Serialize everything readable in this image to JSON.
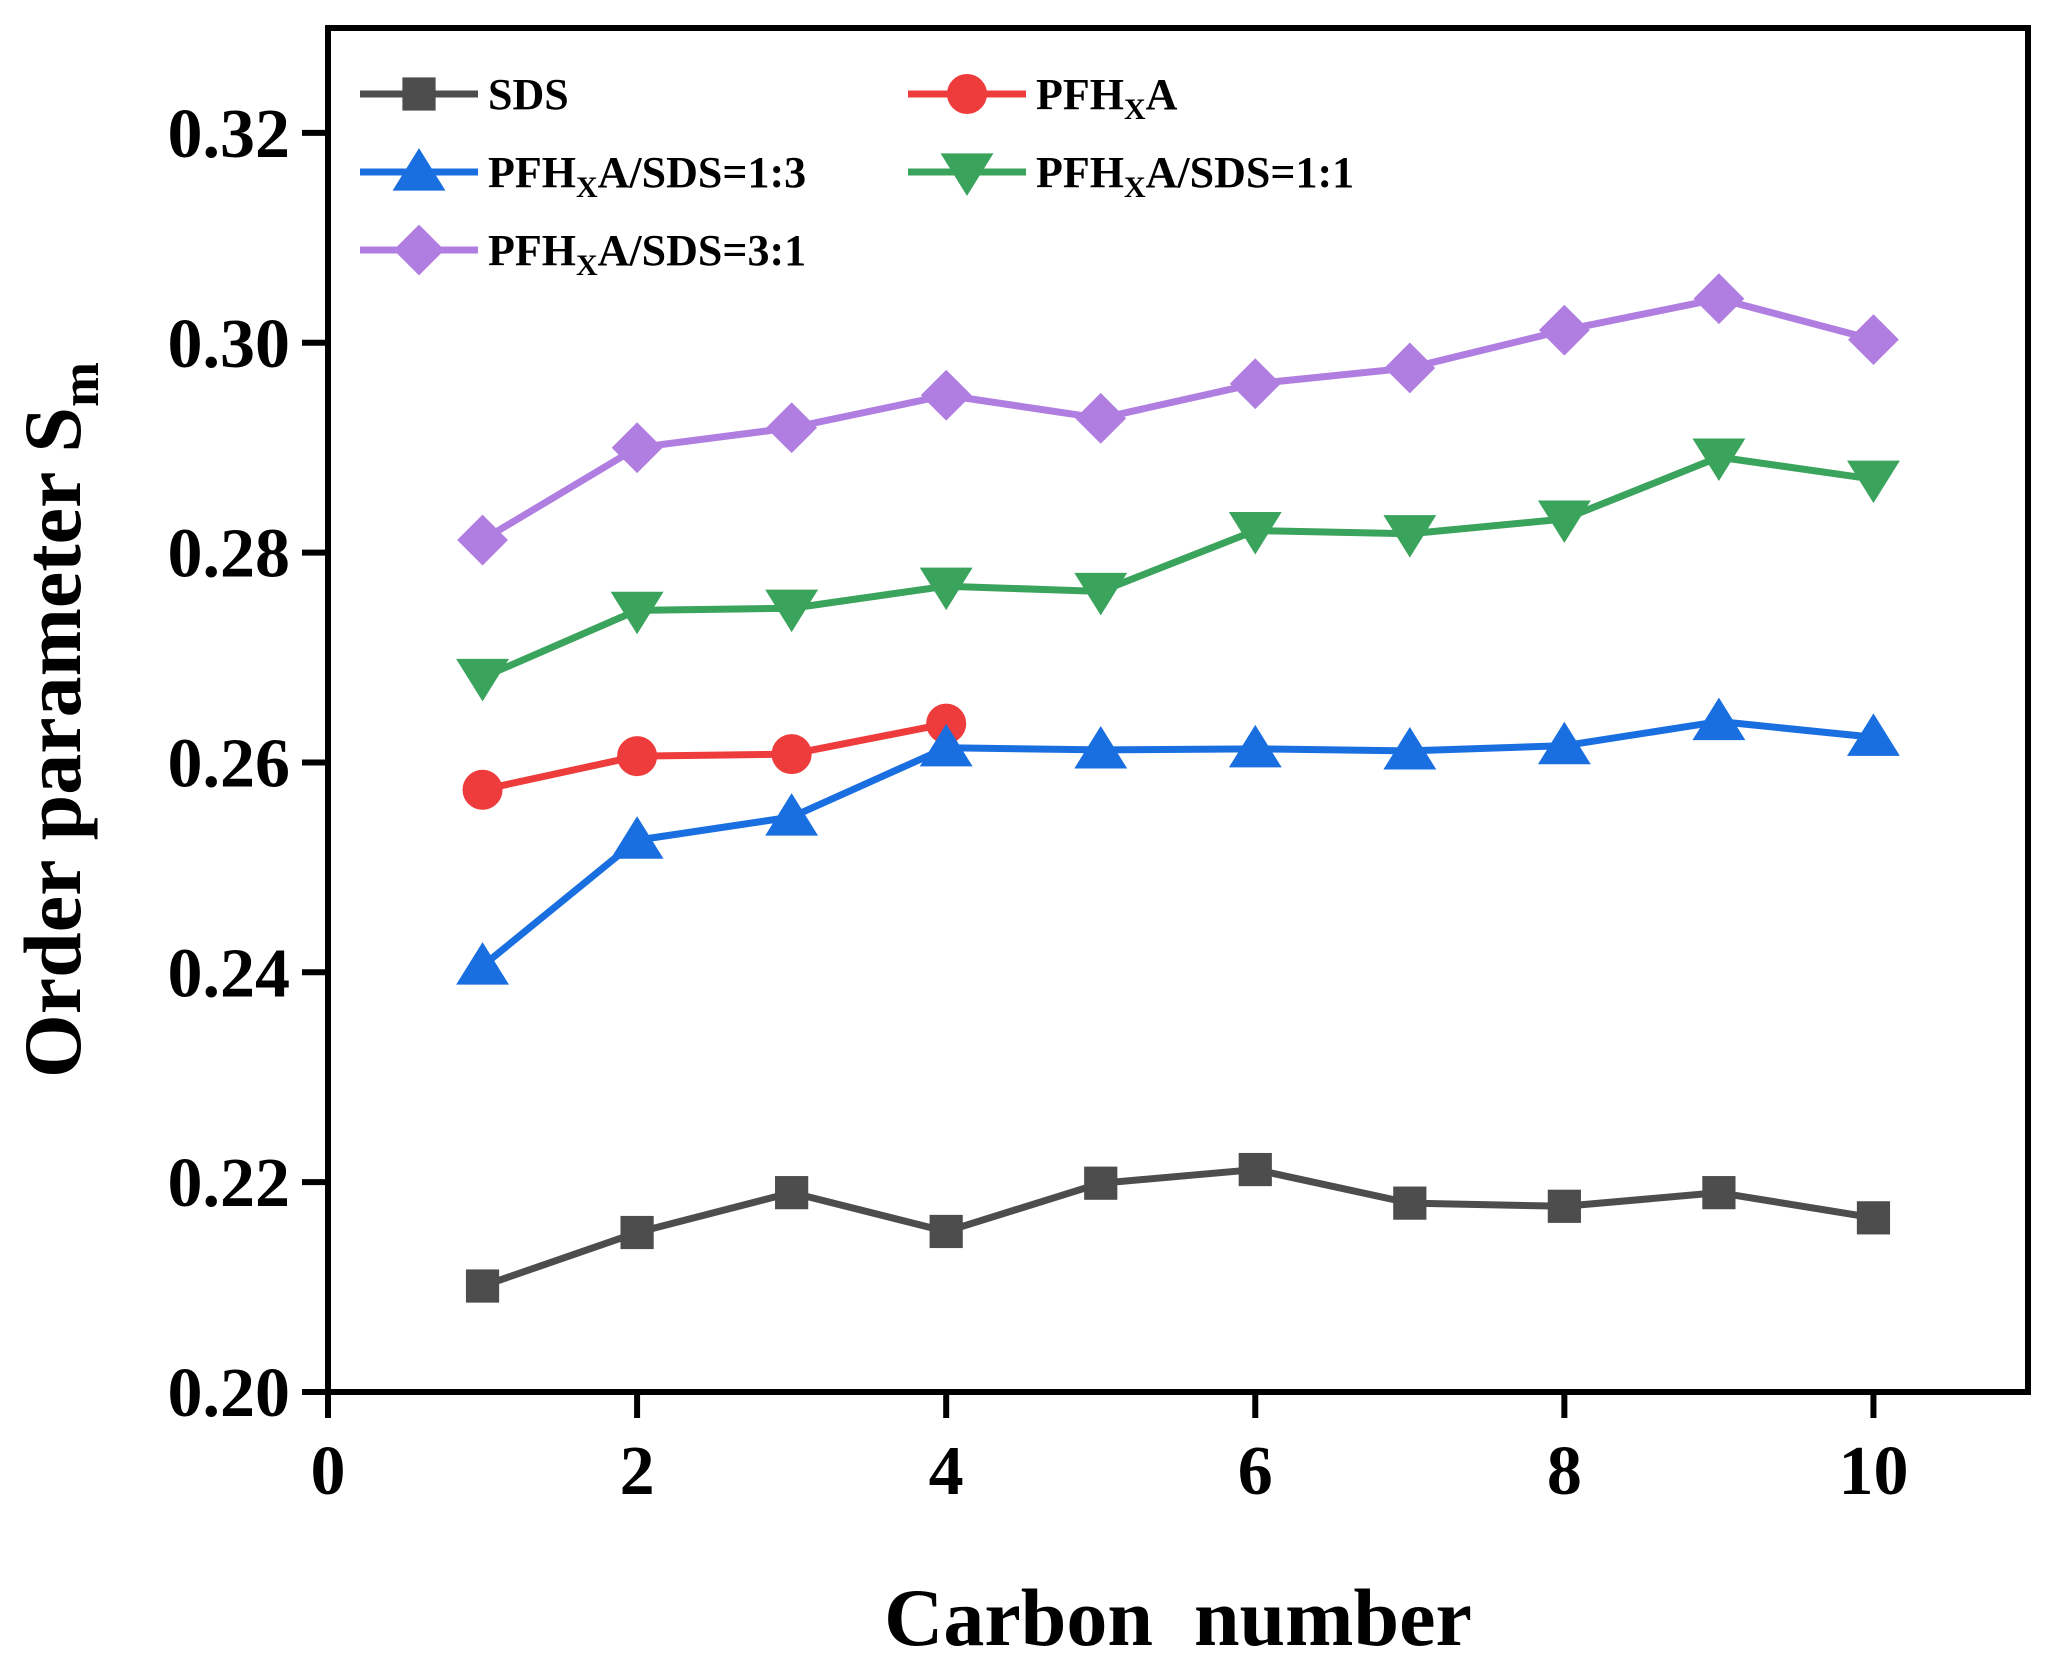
{
  "chart_data": {
    "type": "line",
    "title": "",
    "xlabel": "Carbon  number",
    "ylabel": {
      "main": "Order parameter S",
      "sub": "m"
    },
    "xlim": [
      0,
      11
    ],
    "ylim": [
      0.2,
      0.33
    ],
    "xticks": [
      0,
      2,
      4,
      6,
      8,
      10
    ],
    "xtick_labels": [
      "0",
      "2",
      "4",
      "6",
      "8",
      "10"
    ],
    "yticks": [
      0.2,
      0.22,
      0.24,
      0.26,
      0.28,
      0.3,
      0.32
    ],
    "ytick_labels": [
      "0.20",
      "0.22",
      "0.24",
      "0.26",
      "0.28",
      "0.30",
      "0.32"
    ],
    "grid": false,
    "legend_position": "top-left",
    "series": [
      {
        "name": "SDS",
        "legend": {
          "pre": "SDS",
          "sub": "",
          "post": ""
        },
        "color": "#4d4d4d",
        "marker": "square",
        "x": [
          1,
          2,
          3,
          4,
          5,
          6,
          7,
          8,
          9,
          10
        ],
        "values": [
          0.2101,
          0.2152,
          0.219,
          0.2153,
          0.2199,
          0.2212,
          0.218,
          0.2177,
          0.219,
          0.2166
        ]
      },
      {
        "name": "PFHXA",
        "legend": {
          "pre": "PFH",
          "sub": "X",
          "post": "A"
        },
        "color": "#ee3b3b",
        "marker": "circle",
        "x": [
          1,
          2,
          3,
          4
        ],
        "values": [
          0.2574,
          0.2606,
          0.2608,
          0.2637
        ]
      },
      {
        "name": "PFHXA/SDS=1:3",
        "legend": {
          "pre": "PFH",
          "sub": "X",
          "post": "A/SDS=1:3"
        },
        "color": "#1a6fe0",
        "marker": "triangle-up",
        "x": [
          1,
          2,
          3,
          4,
          5,
          6,
          7,
          8,
          9,
          10
        ],
        "values": [
          0.2406,
          0.2526,
          0.2548,
          0.2614,
          0.2612,
          0.2613,
          0.2611,
          0.2616,
          0.2639,
          0.2624
        ]
      },
      {
        "name": "PFHXA/SDS=1:1",
        "legend": {
          "pre": "PFH",
          "sub": "X",
          "post": "A/SDS=1:1"
        },
        "color": "#3aa35c",
        "marker": "triangle-down",
        "x": [
          1,
          2,
          3,
          4,
          5,
          6,
          7,
          8,
          9,
          10
        ],
        "values": [
          0.2681,
          0.2745,
          0.2747,
          0.2768,
          0.2763,
          0.2821,
          0.2818,
          0.2832,
          0.2891,
          0.287
        ]
      },
      {
        "name": "PFHXA/SDS=3:1",
        "legend": {
          "pre": "PFH",
          "sub": "X",
          "post": "A/SDS=3:1"
        },
        "color": "#b07ee0",
        "marker": "diamond",
        "x": [
          1,
          2,
          3,
          4,
          5,
          6,
          7,
          8,
          9,
          10
        ],
        "values": [
          0.2812,
          0.29,
          0.2919,
          0.295,
          0.2928,
          0.2961,
          0.2976,
          0.3012,
          0.3042,
          0.3003
        ]
      }
    ]
  }
}
